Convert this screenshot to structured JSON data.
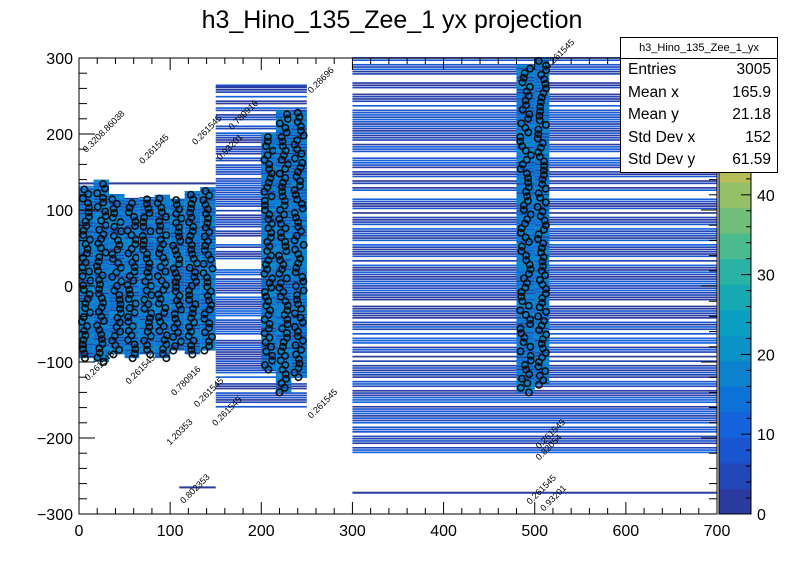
{
  "colors": {
    "palette": [
      "#2a3a9e",
      "#2146b8",
      "#1a55d0",
      "#1462dc",
      "#0d72d8",
      "#0c82cf",
      "#0b91c6",
      "#0a9ec0",
      "#16a9b4",
      "#2ab3a4",
      "#4bba8f",
      "#70be7a",
      "#95c067",
      "#b8bd58",
      "#d3b64f"
    ],
    "axis": "#000000",
    "background": "#ffffff"
  },
  "chart_data": {
    "type": "heatmap",
    "title": "h3_Hino_135_Zee_1 yx projection",
    "xlim": [
      0,
      700
    ],
    "ylim": [
      -300,
      300
    ],
    "zlim": [
      0,
      48
    ],
    "x_ticks": [
      "0",
      "100",
      "200",
      "300",
      "400",
      "500",
      "600",
      "700"
    ],
    "y_ticks": [
      "−300",
      "−200",
      "−100",
      "0",
      "100",
      "200",
      "300"
    ],
    "z_ticks": [
      "0",
      "10",
      "20",
      "30",
      "40"
    ],
    "x_tick_values": [
      0,
      100,
      200,
      300,
      400,
      500,
      600,
      700
    ],
    "y_tick_values": [
      -300,
      -200,
      -100,
      0,
      100,
      200,
      300
    ],
    "z_tick_values": [
      0,
      10,
      20,
      30,
      40
    ],
    "dense_columns": [
      {
        "x0": 0,
        "x1": 16,
        "y0": -95,
        "y1": 130
      },
      {
        "x0": 16,
        "x1": 33,
        "y0": -100,
        "y1": 140
      },
      {
        "x0": 33,
        "x1": 50,
        "y0": -90,
        "y1": 120
      },
      {
        "x0": 50,
        "x1": 66,
        "y0": -95,
        "y1": 115
      },
      {
        "x0": 66,
        "x1": 83,
        "y0": -90,
        "y1": 115
      },
      {
        "x0": 83,
        "x1": 100,
        "y0": -95,
        "y1": 120
      },
      {
        "x0": 100,
        "x1": 116,
        "y0": -85,
        "y1": 115
      },
      {
        "x0": 116,
        "x1": 133,
        "y0": -90,
        "y1": 125
      },
      {
        "x0": 133,
        "x1": 150,
        "y0": -85,
        "y1": 130
      },
      {
        "x0": 200,
        "x1": 216,
        "y0": -110,
        "y1": 200
      },
      {
        "x0": 216,
        "x1": 233,
        "y0": -140,
        "y1": 230
      },
      {
        "x0": 233,
        "x1": 250,
        "y0": -120,
        "y1": 230
      },
      {
        "x0": 480,
        "x1": 500,
        "y0": -140,
        "y1": 290
      },
      {
        "x0": 500,
        "x1": 516,
        "y0": -130,
        "y1": 300
      }
    ],
    "band_regions": [
      {
        "x0": 150,
        "x1": 250,
        "y0": -160,
        "y1": 265
      },
      {
        "x0": 300,
        "x1": 700,
        "y0": -220,
        "y1": 300
      }
    ],
    "isolated_lines": [
      {
        "x0": 150,
        "x1": 250,
        "y": 262
      },
      {
        "x0": 300,
        "x1": 700,
        "y": -272
      },
      {
        "x0": 110,
        "x1": 150,
        "y": -265
      },
      {
        "x0": 0,
        "x1": 150,
        "y": 135
      }
    ],
    "bin_labels": [
      {
        "x": 8,
        "y": 175,
        "text": "0.3208.86038"
      },
      {
        "x": 128,
        "y": 185,
        "text": "0.261545"
      },
      {
        "x": 168,
        "y": 205,
        "text": "0.780916"
      },
      {
        "x": 255,
        "y": 253,
        "text": "0.28696"
      },
      {
        "x": 515,
        "y": 285,
        "text": "0.261545"
      },
      {
        "x": 70,
        "y": 160,
        "text": "0.261545"
      },
      {
        "x": 155,
        "y": 165,
        "text": "0.93201"
      },
      {
        "x": 10,
        "y": -125,
        "text": "0.261545"
      },
      {
        "x": 55,
        "y": -130,
        "text": "0.261545"
      },
      {
        "x": 105,
        "y": -145,
        "text": "0.780916"
      },
      {
        "x": 130,
        "y": -160,
        "text": "0.261545"
      },
      {
        "x": 100,
        "y": -210,
        "text": "1.20353"
      },
      {
        "x": 150,
        "y": -185,
        "text": "0.261545"
      },
      {
        "x": 255,
        "y": -175,
        "text": "0.261545"
      },
      {
        "x": 505,
        "y": -230,
        "text": "0.82054"
      },
      {
        "x": 505,
        "y": -215,
        "text": "0.261545"
      },
      {
        "x": 115,
        "y": -287,
        "text": "0.802353"
      },
      {
        "x": 495,
        "y": -288,
        "text": "0.261545"
      },
      {
        "x": 510,
        "y": -297,
        "text": "0.93201"
      }
    ]
  },
  "stats": {
    "title": "h3_Hino_135_Zee_1_yx",
    "rows": [
      {
        "label": "Entries",
        "value": "3005"
      },
      {
        "label": "Mean x",
        "value": "165.9"
      },
      {
        "label": "Mean y",
        "value": "21.18"
      },
      {
        "label": "Std Dev x",
        "value": "152"
      },
      {
        "label": "Std Dev y",
        "value": "61.59"
      }
    ]
  }
}
